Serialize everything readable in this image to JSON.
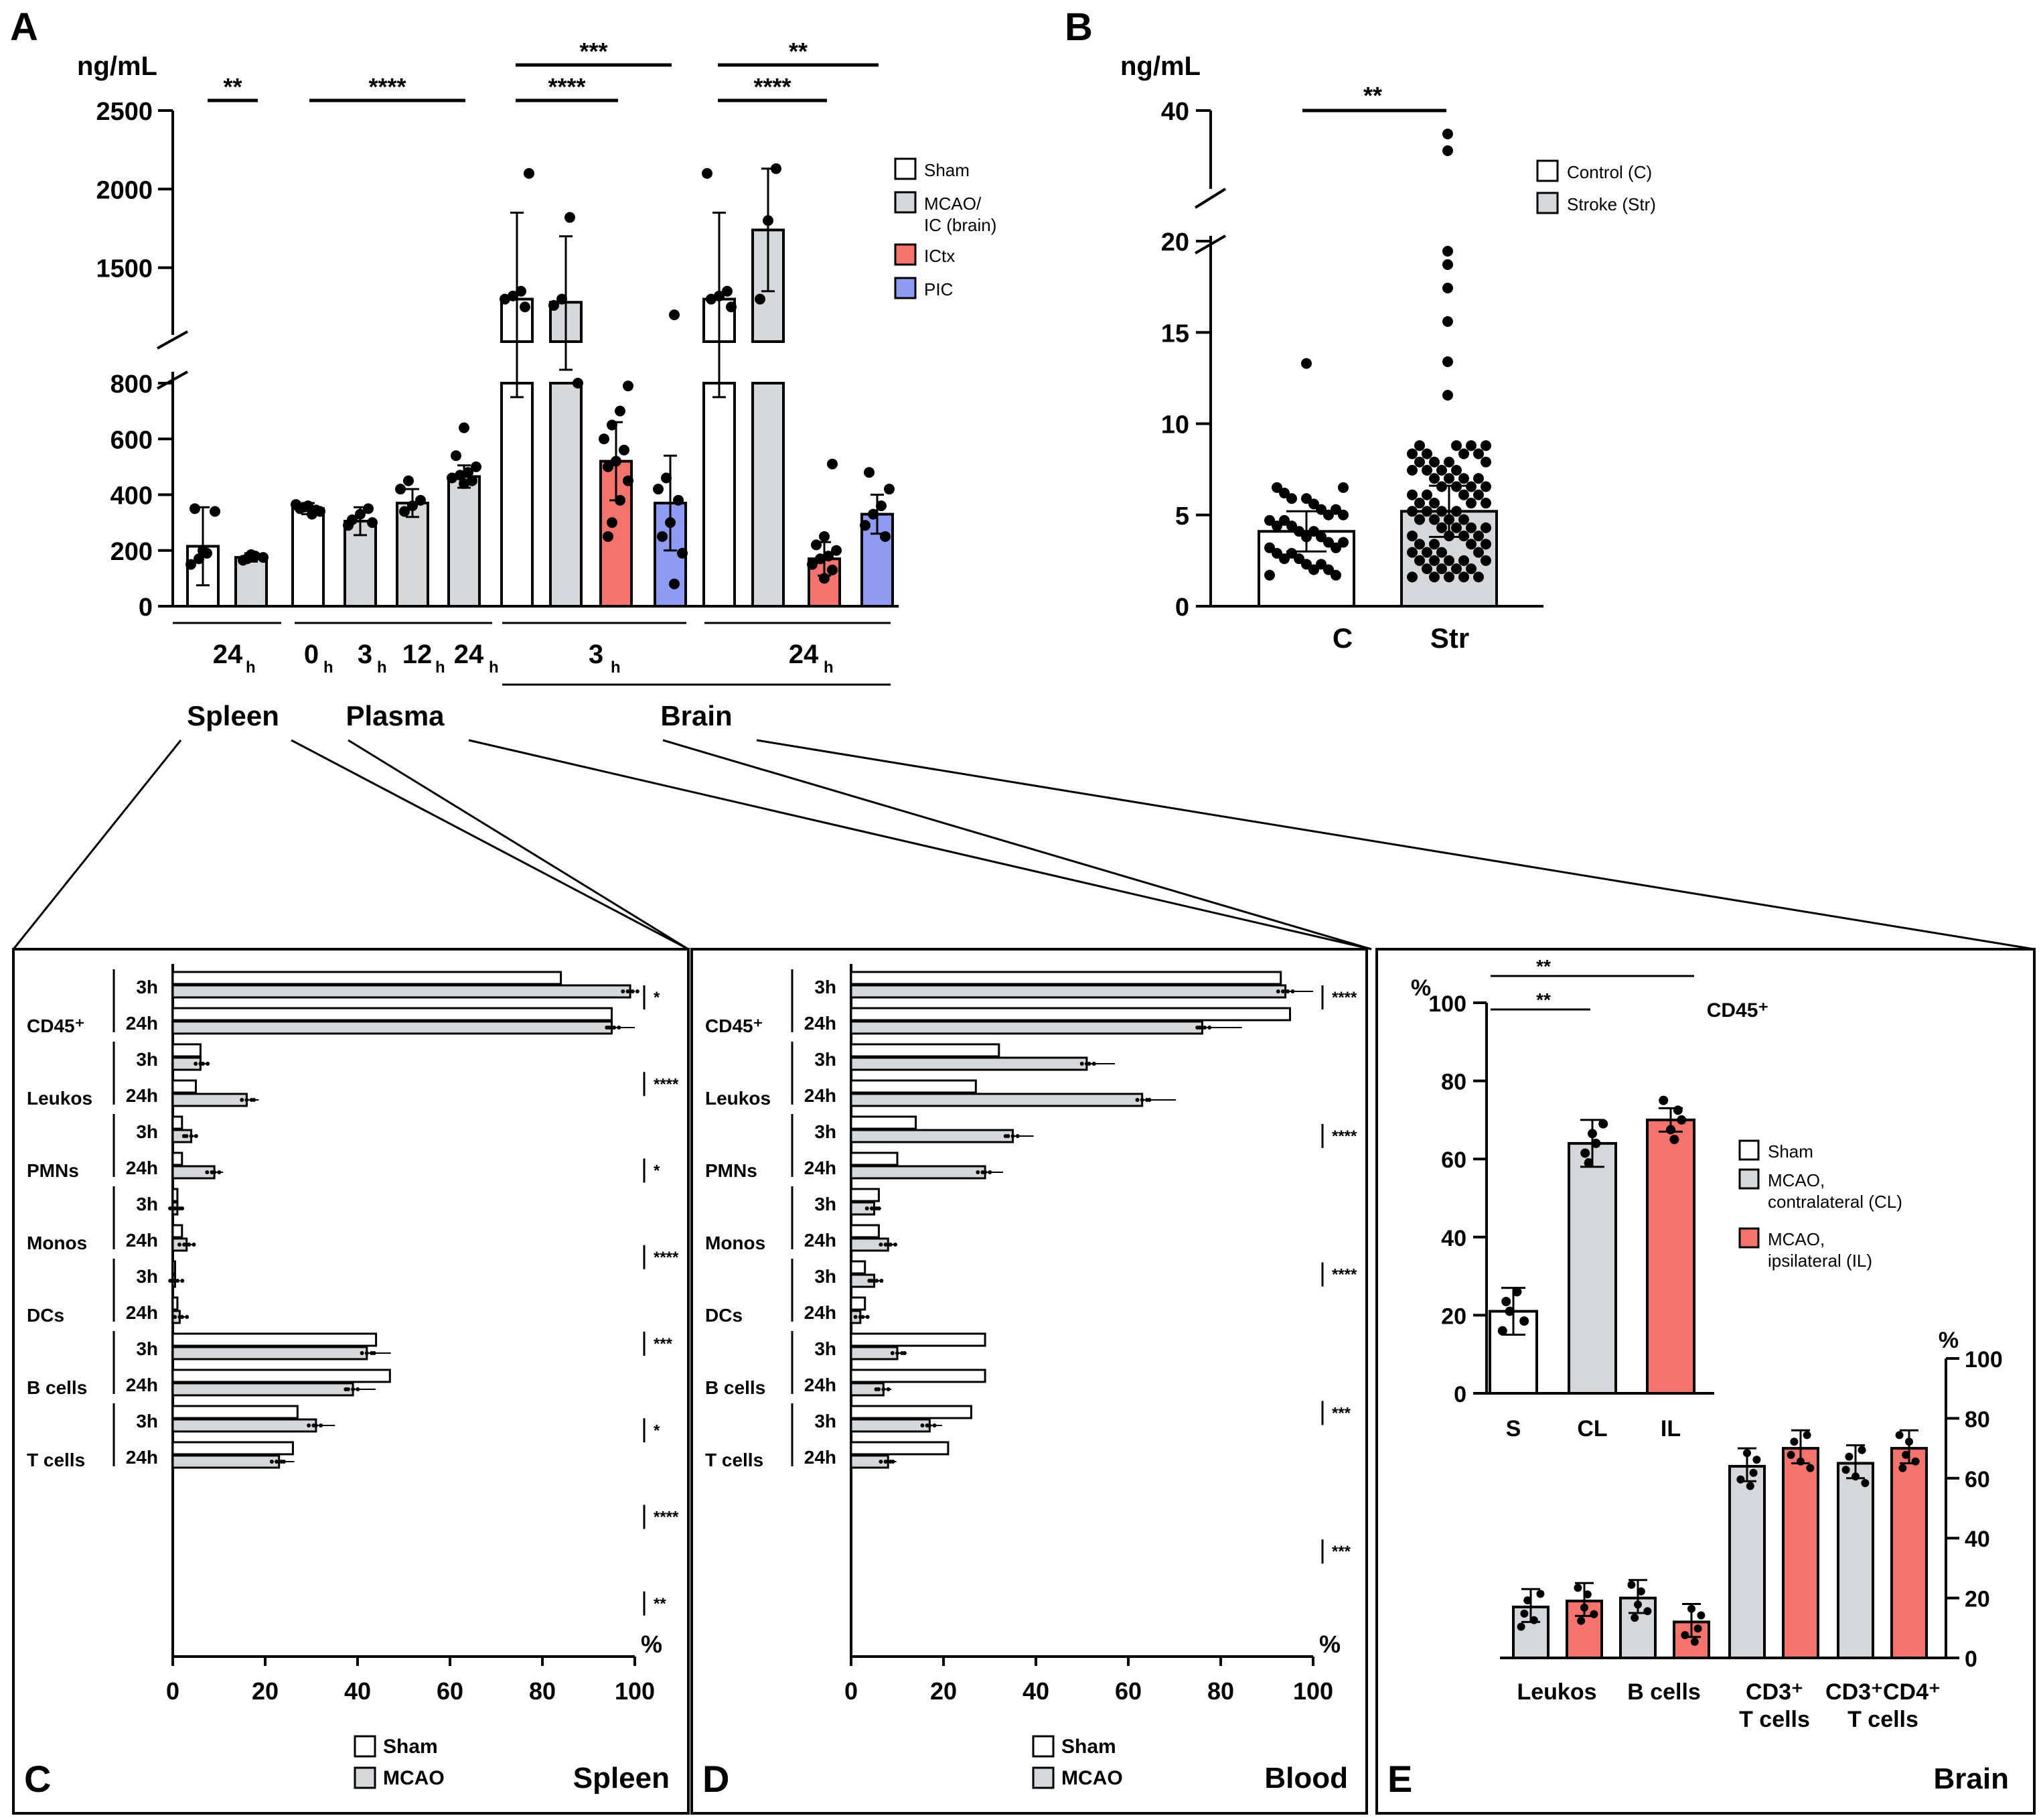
{
  "colors": {
    "white": "#ffffff",
    "gray": "#d4d8db",
    "red": "#f4736d",
    "blue": "#8f9af2",
    "ink": "#000000"
  },
  "panel_letters": {
    "A": "A",
    "B": "B",
    "C": "C",
    "D": "D",
    "E": "E"
  },
  "panelA": {
    "unit": "ng/mL",
    "y_ticks_low": [
      "0",
      "200",
      "400",
      "600",
      "800"
    ],
    "y_ticks_high": [
      "1500",
      "2000",
      "2500"
    ],
    "legend": [
      {
        "label": "Sham",
        "color_key": "white"
      },
      {
        "label": "MCAO/",
        "color_key": "gray"
      },
      {
        "label": "IC (brain)",
        "color_key": null
      },
      {
        "label": "ICtx",
        "color_key": "red"
      },
      {
        "label": "PIC",
        "color_key": "blue"
      }
    ],
    "time_labels": [
      {
        "base": "24",
        "sub": "h"
      },
      {
        "base": "0",
        "sub": "h"
      },
      {
        "base": "3",
        "sub": "h"
      },
      {
        "base": "12",
        "sub": "h"
      },
      {
        "base": "24",
        "sub": "h"
      },
      {
        "base": "3",
        "sub": "h"
      },
      {
        "base": "24",
        "sub": "h"
      }
    ],
    "groups": [
      "Spleen",
      "Plasma",
      "Brain"
    ],
    "significance": [
      "**",
      "****",
      "***",
      "****",
      "**",
      "****"
    ]
  },
  "panelB": {
    "unit": "ng/mL",
    "y_ticks": [
      "0",
      "5",
      "10",
      "15",
      "20",
      "40"
    ],
    "categories": [
      "C",
      "Str"
    ],
    "legend": [
      "Control (C)",
      "Stroke (Str)"
    ],
    "significance": [
      "**"
    ]
  },
  "panelC": {
    "tissue": "Spleen",
    "x_ticks": [
      "0",
      "20",
      "40",
      "60",
      "80",
      "100"
    ],
    "pct": "%",
    "legend": [
      "Sham",
      "MCAO"
    ],
    "significance": [
      "*",
      "****",
      "*",
      "****",
      "***",
      "*",
      "****",
      "**"
    ]
  },
  "panelD": {
    "tissue": "Blood",
    "x_ticks": [
      "0",
      "20",
      "40",
      "60",
      "80",
      "100"
    ],
    "pct": "%",
    "legend": [
      "Sham",
      "MCAO"
    ],
    "significance": [
      "****",
      "****",
      "****",
      "***",
      "***"
    ]
  },
  "cell_types": [
    "CD45⁺",
    "Leukos",
    "PMNs",
    "Monos",
    "DCs",
    "B cells",
    "T cells"
  ],
  "time_rows": [
    "3h",
    "24h"
  ],
  "panelE": {
    "tissue": "Brain",
    "pct": "%",
    "inset_title": "CD45⁺",
    "inset_ticks": [
      "0",
      "20",
      "40",
      "60",
      "80",
      "100"
    ],
    "inset_categories": [
      "S",
      "CL",
      "IL"
    ],
    "inset_significance": [
      "**",
      "**"
    ],
    "legend": [
      "Sham",
      "MCAO,",
      "contralateral (CL)",
      "MCAO,",
      "ipsilateral (IL)"
    ],
    "main_ticks": [
      "0",
      "20",
      "40",
      "60",
      "80",
      "100"
    ],
    "main_categories": [
      "Leukos",
      "B cells",
      "CD3⁺",
      "T cells",
      "CD3⁺CD4⁺",
      "T cells"
    ]
  },
  "chart_data": [
    {
      "id": "A",
      "type": "bar",
      "title": "",
      "ylabel": "ng/mL",
      "ylim": [
        0,
        2500
      ],
      "axis_break": [
        800,
        1000
      ],
      "series": [
        {
          "name": "Spleen Sham 24h",
          "color_key": "white",
          "value": 215,
          "err": 140,
          "points": [
            150,
            170,
            190,
            340,
            350,
            200
          ]
        },
        {
          "name": "Spleen MCAO 24h",
          "color_key": "gray",
          "value": 175,
          "err": 15,
          "points": [
            170,
            180,
            175,
            165,
            185
          ]
        },
        {
          "name": "Plasma 0h",
          "color_key": "white",
          "value": 350,
          "err": 20,
          "points": [
            330,
            340,
            350,
            360,
            345,
            365,
            355
          ]
        },
        {
          "name": "Plasma 3h",
          "color_key": "gray",
          "value": 305,
          "err": 50,
          "points": [
            300,
            310,
            330,
            350,
            290
          ]
        },
        {
          "name": "Plasma 12h",
          "color_key": "gray",
          "value": 370,
          "err": 50,
          "points": [
            340,
            360,
            380,
            420,
            450
          ]
        },
        {
          "name": "Plasma 24h",
          "color_key": "gray",
          "value": 465,
          "err": 40,
          "points": [
            440,
            450,
            460,
            470,
            480,
            500,
            540,
            640
          ]
        },
        {
          "name": "Brain 3h Sham",
          "color_key": "white",
          "value": 1300,
          "err": 550,
          "points": [
            1250,
            1300,
            1320,
            1350,
            2100
          ]
        },
        {
          "name": "Brain 3h MCAO/IC",
          "color_key": "gray",
          "value": 1280,
          "err": 420,
          "points": [
            1260,
            1300,
            1820,
            800
          ]
        },
        {
          "name": "Brain 3h ICtx",
          "color_key": "red",
          "value": 520,
          "err": 140,
          "points": [
            300,
            380,
            450,
            500,
            520,
            560,
            600,
            650,
            700,
            790,
            250
          ]
        },
        {
          "name": "Brain 3h PIC",
          "color_key": "blue",
          "value": 370,
          "err": 170,
          "points": [
            80,
            190,
            250,
            300,
            380,
            420,
            460,
            1200
          ]
        },
        {
          "name": "Brain 24h Sham",
          "color_key": "white",
          "value": 1300,
          "err": 550,
          "points": [
            1250,
            1300,
            1320,
            1350,
            2100
          ]
        },
        {
          "name": "Brain 24h MCAO/IC",
          "color_key": "gray",
          "value": 1740,
          "err": 390,
          "points": [
            1300,
            1800,
            2130
          ]
        },
        {
          "name": "Brain 24h ICtx",
          "color_key": "red",
          "value": 170,
          "err": 60,
          "points": [
            100,
            130,
            150,
            170,
            180,
            200,
            220,
            250,
            510
          ]
        },
        {
          "name": "Brain 24h PIC",
          "color_key": "blue",
          "value": 330,
          "err": 70,
          "points": [
            250,
            290,
            330,
            360,
            420,
            480
          ]
        }
      ]
    },
    {
      "id": "B",
      "type": "bar",
      "ylabel": "ng/mL",
      "categories": [
        "C",
        "Str"
      ],
      "values": [
        4.1,
        5.2
      ],
      "errors": [
        1.1,
        1.4
      ],
      "ylim": [
        0,
        40
      ]
    },
    {
      "id": "C",
      "type": "bar",
      "orientation": "horizontal",
      "title": "Spleen",
      "xlabel": "%",
      "xlim": [
        0,
        100
      ],
      "rows": [
        {
          "cell": "CD45⁺",
          "time": "3h",
          "sham": 84,
          "mcao": 99
        },
        {
          "cell": "CD45⁺",
          "time": "24h",
          "sham": 95,
          "mcao": 95
        },
        {
          "cell": "Leukos",
          "time": "3h",
          "sham": 6,
          "mcao": 6
        },
        {
          "cell": "Leukos",
          "time": "24h",
          "sham": 5,
          "mcao": 16
        },
        {
          "cell": "PMNs",
          "time": "3h",
          "sham": 2,
          "mcao": 4
        },
        {
          "cell": "PMNs",
          "time": "24h",
          "sham": 2,
          "mcao": 9
        },
        {
          "cell": "Monos",
          "time": "3h",
          "sham": 1,
          "mcao": 1
        },
        {
          "cell": "Monos",
          "time": "24h",
          "sham": 2,
          "mcao": 3
        },
        {
          "cell": "DCs",
          "time": "3h",
          "sham": 0.5,
          "mcao": 0.5
        },
        {
          "cell": "DCs",
          "time": "24h",
          "sham": 1,
          "mcao": 1.5
        },
        {
          "cell": "B cells",
          "time": "3h",
          "sham": 44,
          "mcao": 42
        },
        {
          "cell": "B cells",
          "time": "24h",
          "sham": 47,
          "mcao": 39
        },
        {
          "cell": "T cells",
          "time": "3h",
          "sham": 27,
          "mcao": 31
        },
        {
          "cell": "T cells",
          "time": "24h",
          "sham": 26,
          "mcao": 23
        }
      ]
    },
    {
      "id": "D",
      "type": "bar",
      "orientation": "horizontal",
      "title": "Blood",
      "xlabel": "%",
      "xlim": [
        0,
        100
      ],
      "rows": [
        {
          "cell": "CD45⁺",
          "time": "3h",
          "sham": 93,
          "mcao": 94
        },
        {
          "cell": "CD45⁺",
          "time": "24h",
          "sham": 95,
          "mcao": 76
        },
        {
          "cell": "Leukos",
          "time": "3h",
          "sham": 32,
          "mcao": 51
        },
        {
          "cell": "Leukos",
          "time": "24h",
          "sham": 27,
          "mcao": 63
        },
        {
          "cell": "PMNs",
          "time": "3h",
          "sham": 14,
          "mcao": 35
        },
        {
          "cell": "PMNs",
          "time": "24h",
          "sham": 10,
          "mcao": 29
        },
        {
          "cell": "Monos",
          "time": "3h",
          "sham": 6,
          "mcao": 5
        },
        {
          "cell": "Monos",
          "time": "24h",
          "sham": 6,
          "mcao": 8
        },
        {
          "cell": "DCs",
          "time": "3h",
          "sham": 3,
          "mcao": 5
        },
        {
          "cell": "DCs",
          "time": "24h",
          "sham": 3,
          "mcao": 2
        },
        {
          "cell": "B cells",
          "time": "3h",
          "sham": 29,
          "mcao": 10
        },
        {
          "cell": "B cells",
          "time": "24h",
          "sham": 29,
          "mcao": 7
        },
        {
          "cell": "T cells",
          "time": "3h",
          "sham": 26,
          "mcao": 17
        },
        {
          "cell": "T cells",
          "time": "24h",
          "sham": 21,
          "mcao": 8
        }
      ]
    },
    {
      "id": "E-inset",
      "type": "bar",
      "title": "CD45⁺",
      "ylabel": "%",
      "categories": [
        "S",
        "CL",
        "IL"
      ],
      "values": [
        21,
        64,
        70
      ],
      "errors": [
        6,
        6,
        3
      ],
      "ylim": [
        0,
        100
      ]
    },
    {
      "id": "E-main",
      "type": "bar",
      "title": "Brain",
      "ylabel": "%",
      "categories": [
        "Leukos",
        "B cells",
        "CD3⁺ T cells",
        "CD3⁺CD4⁺ T cells"
      ],
      "series": [
        {
          "name": "MCAO, contralateral (CL)",
          "values": [
            17,
            20,
            64,
            65
          ]
        },
        {
          "name": "MCAO, ipsilateral (IL)",
          "values": [
            19,
            12,
            70,
            70
          ]
        }
      ],
      "ylim": [
        0,
        100
      ]
    }
  ]
}
